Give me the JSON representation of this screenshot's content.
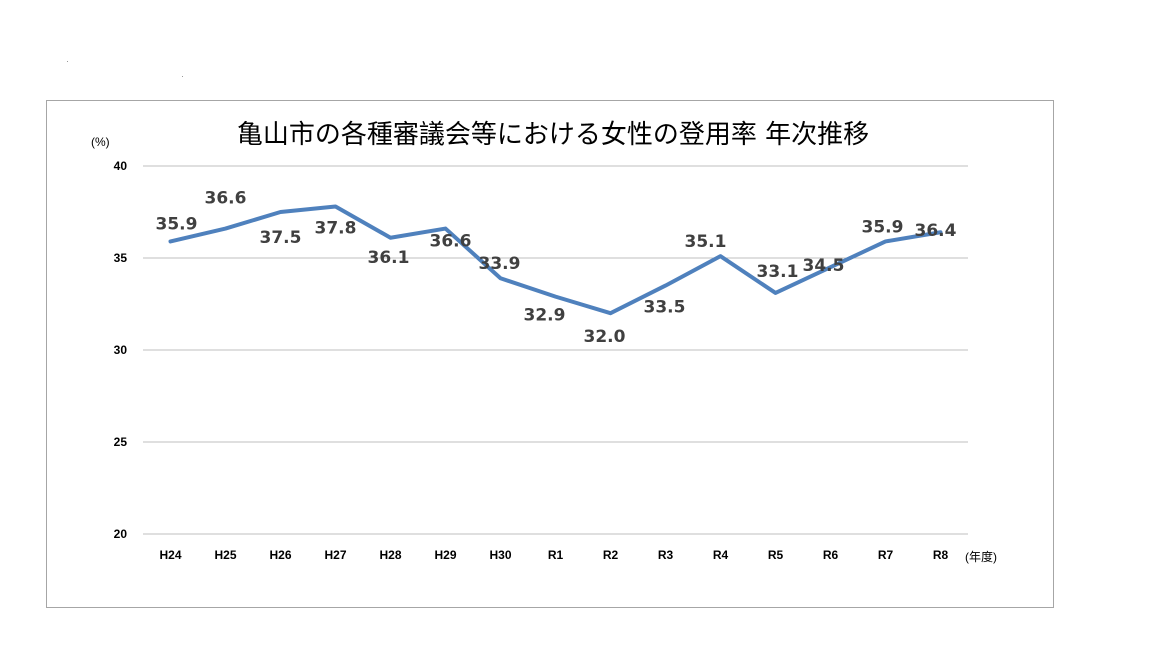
{
  "chart_data": {
    "type": "line",
    "title": "亀山市の各種審議会等における女性の登用率 年次推移",
    "ylabel": "(%)",
    "xlabel": "(年度)",
    "categories": [
      "H24",
      "H25",
      "H26",
      "H27",
      "H28",
      "H29",
      "H30",
      "R1",
      "R2",
      "R3",
      "R4",
      "R5",
      "R6",
      "R7",
      "R8"
    ],
    "series": [
      {
        "values": [
          35.9,
          36.6,
          37.5,
          37.8,
          36.1,
          36.6,
          33.9,
          32.9,
          32.0,
          33.5,
          35.1,
          33.1,
          34.5,
          35.9,
          36.4
        ],
        "labels": [
          "35.9",
          "36.6",
          "37.5",
          "37.8",
          "36.1",
          "36.6",
          "33.9",
          "32.9",
          "32.0",
          "33.5",
          "35.1",
          "33.1",
          "34.5",
          "35.9",
          "36.4"
        ],
        "color": "#4f81bd"
      }
    ],
    "ylim": [
      20,
      40
    ],
    "yticks": [
      20,
      25,
      30,
      35,
      40
    ],
    "grid": true,
    "legend": "none"
  }
}
